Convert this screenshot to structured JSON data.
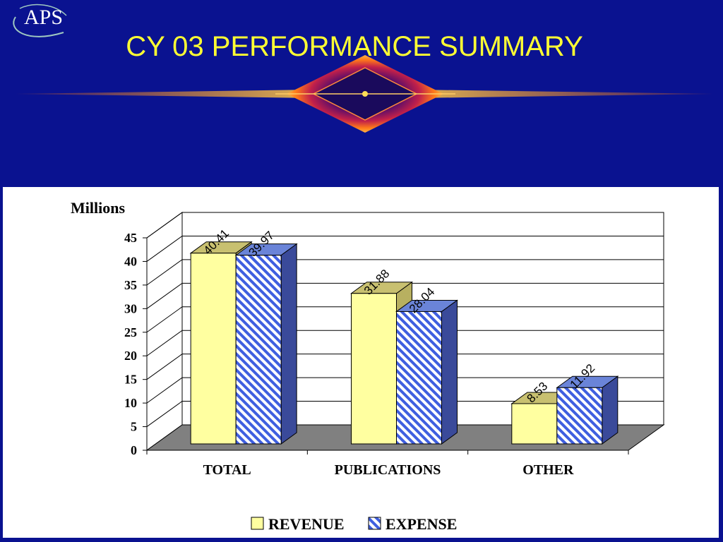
{
  "logo": {
    "text": "APS"
  },
  "title": "CY 03 PERFORMANCE SUMMARY",
  "colors": {
    "background": "#0a1290",
    "title": "#ffff33",
    "revenue": "#ffffa0",
    "expense": "#3f5fe0",
    "floor": "#808080"
  },
  "chart_data": {
    "type": "bar",
    "ylabel": "Millions",
    "ylim": [
      0,
      45
    ],
    "yticks": [
      0,
      5,
      10,
      15,
      20,
      25,
      30,
      35,
      40,
      45
    ],
    "grid": true,
    "categories": [
      "TOTAL",
      "PUBLICATIONS",
      "OTHER"
    ],
    "series": [
      {
        "name": "REVENUE",
        "values": [
          40.41,
          31.88,
          8.53
        ]
      },
      {
        "name": "EXPENSE",
        "values": [
          39.97,
          28.04,
          11.92
        ]
      }
    ],
    "data_labels": [
      [
        "40.41",
        "31.88",
        "8.53"
      ],
      [
        "39.97",
        "28.04",
        "11.92"
      ]
    ],
    "legend_position": "bottom"
  }
}
